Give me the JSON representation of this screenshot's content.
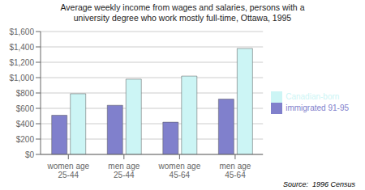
{
  "chart_data": {
    "type": "bar",
    "title": "Average weekly income from wages and salaries, persons with a\nuniversity degree who work mostly full-time, Ottawa, 1995",
    "categories": [
      "women age 25-44",
      "men age 25-44",
      "women age 45-64",
      "men age 45-64"
    ],
    "series": [
      {
        "name": "immigrated 91-95",
        "color": "#8080cc",
        "values": [
          510,
          640,
          420,
          720
        ]
      },
      {
        "name": "Canadian-born",
        "color": "#ccf5f5",
        "values": [
          790,
          980,
          1020,
          1380
        ]
      }
    ],
    "ylim": [
      0,
      1600
    ],
    "yticks": [
      {
        "value": 0,
        "label": "$0"
      },
      {
        "value": 200,
        "label": "$200"
      },
      {
        "value": 400,
        "label": "$400"
      },
      {
        "value": 600,
        "label": "$600"
      },
      {
        "value": 800,
        "label": "$800"
      },
      {
        "value": 1000,
        "label": "$1,000"
      },
      {
        "value": 1200,
        "label": "$1,200"
      },
      {
        "value": 1400,
        "label": "$1,400"
      },
      {
        "value": 1600,
        "label": "$1,600"
      }
    ],
    "grid": true,
    "legend": "right",
    "annotations": [
      "Source:  1996 Census"
    ]
  }
}
